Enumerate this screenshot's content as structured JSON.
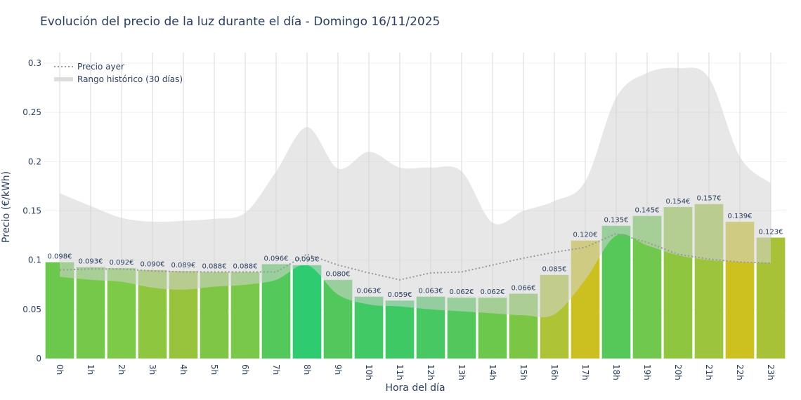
{
  "chart_data": {
    "type": "bar",
    "title": "Evolución del precio de la luz durante el día - Domingo 16/11/2025",
    "xlabel": "Hora del día",
    "ylabel": "Precio (€/kWh)",
    "ylim": [
      0,
      0.3
    ],
    "yticks": [
      0,
      0.05,
      0.1,
      0.15,
      0.2,
      0.25,
      0.3
    ],
    "ytick_labels": [
      "0",
      "0.05",
      "0.1",
      "0.15",
      "0.2",
      "0.25",
      "0.3"
    ],
    "grid": true,
    "legend_position": "top-left",
    "categories": [
      "0h",
      "1h",
      "2h",
      "3h",
      "4h",
      "5h",
      "6h",
      "7h",
      "8h",
      "9h",
      "10h",
      "11h",
      "12h",
      "13h",
      "14h",
      "15h",
      "16h",
      "17h",
      "18h",
      "19h",
      "20h",
      "21h",
      "22h",
      "23h"
    ],
    "values": [
      0.098,
      0.093,
      0.092,
      0.09,
      0.089,
      0.088,
      0.088,
      0.096,
      0.095,
      0.08,
      0.063,
      0.059,
      0.063,
      0.062,
      0.062,
      0.066,
      0.085,
      0.12,
      0.135,
      0.145,
      0.154,
      0.157,
      0.139,
      0.123
    ],
    "data_labels": [
      "0.098€",
      "0.093€",
      "0.092€",
      "0.090€",
      "0.089€",
      "0.088€",
      "0.088€",
      "0.096€",
      "0.095€",
      "0.080€",
      "0.063€",
      "0.059€",
      "0.063€",
      "0.062€",
      "0.062€",
      "0.066€",
      "0.085€",
      "0.120€",
      "0.135€",
      "0.145€",
      "0.154€",
      "0.157€",
      "0.139€",
      "0.123€"
    ],
    "bar_colors": [
      "#6cc84c",
      "#74c94a",
      "#7dc948",
      "#8ec640",
      "#97c43c",
      "#80c646",
      "#79c849",
      "#52c95a",
      "#2ecb70",
      "#52c85c",
      "#40c964",
      "#3ec964",
      "#48c862",
      "#52c85c",
      "#6cc84c",
      "#7cc646",
      "#aec436",
      "#ccc020",
      "#56c85a",
      "#70c84e",
      "#8ec640",
      "#9cc43c",
      "#cdc11f",
      "#a8c238"
    ],
    "series": [
      {
        "name": "Precio ayer",
        "type": "line",
        "style": "dotted",
        "color": "#999999",
        "values": [
          0.09,
          0.091,
          0.091,
          0.089,
          0.088,
          0.088,
          0.088,
          0.088,
          0.106,
          0.095,
          0.087,
          0.08,
          0.087,
          0.088,
          0.095,
          0.102,
          0.108,
          0.113,
          0.127,
          0.118,
          0.106,
          0.101,
          0.098,
          0.097
        ]
      },
      {
        "name": "Rango histórico (30 días)",
        "type": "band",
        "color": "#d3d3d3",
        "upper": [
          0.168,
          0.155,
          0.143,
          0.139,
          0.14,
          0.142,
          0.148,
          0.19,
          0.235,
          0.193,
          0.21,
          0.194,
          0.194,
          0.19,
          0.138,
          0.15,
          0.16,
          0.18,
          0.265,
          0.29,
          0.295,
          0.285,
          0.205,
          0.178
        ],
        "lower": [
          0.083,
          0.08,
          0.078,
          0.072,
          0.07,
          0.073,
          0.075,
          0.08,
          0.095,
          0.065,
          0.055,
          0.053,
          0.05,
          0.048,
          0.046,
          0.044,
          0.045,
          0.08,
          0.125,
          0.115,
          0.105,
          0.1,
          0.098,
          0.097
        ]
      }
    ]
  }
}
